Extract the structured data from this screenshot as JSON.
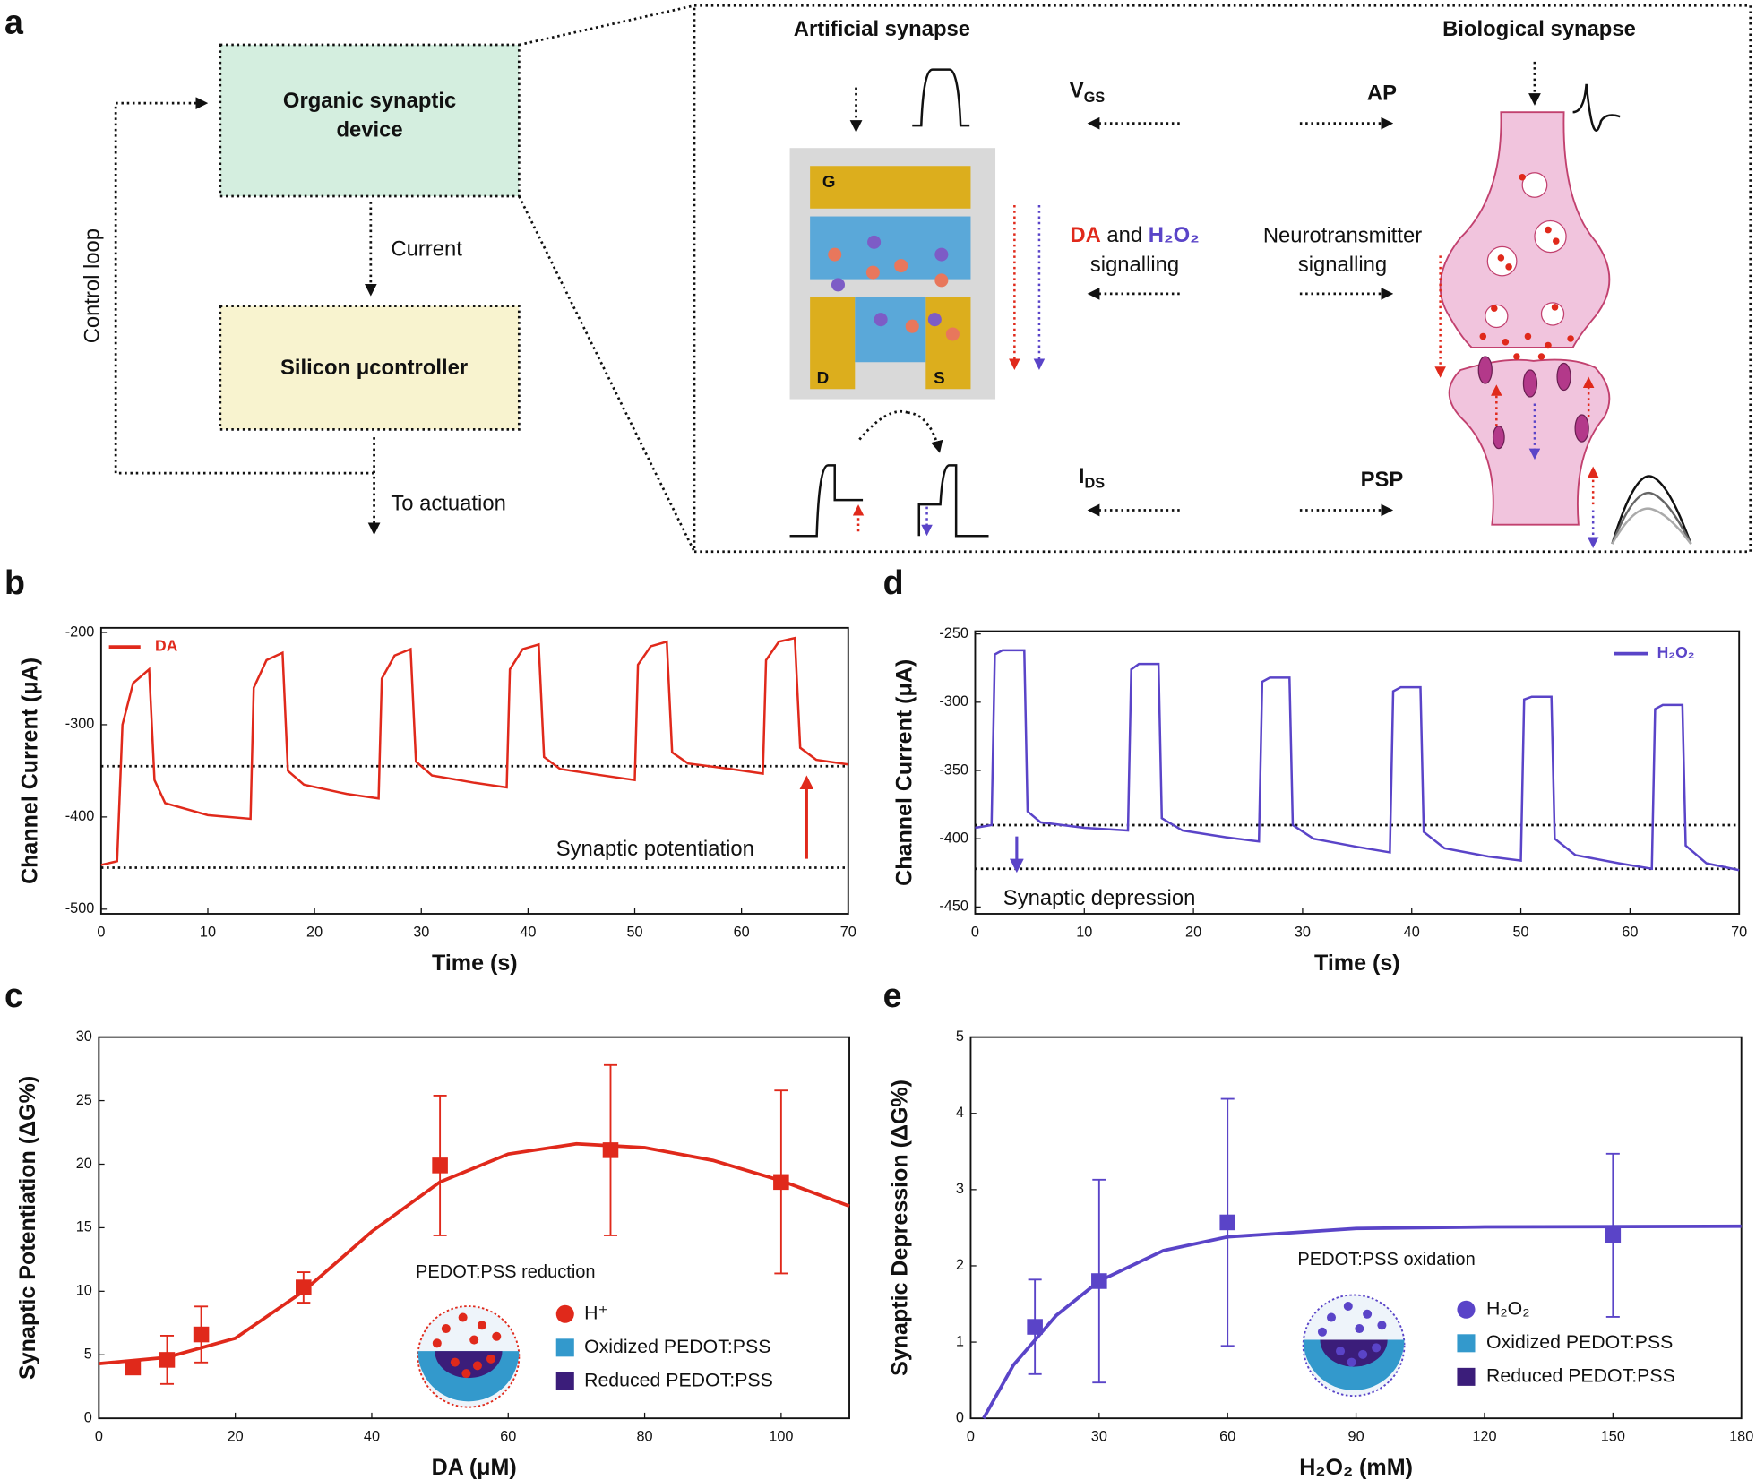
{
  "diagram": {
    "panel": "a",
    "device_box": [
      "Organic synaptic",
      "device"
    ],
    "current": "Current",
    "controller": "Silicon μcontroller",
    "actuation": "To actuation",
    "loop": "Control loop",
    "artificial": "Artificial synapse",
    "biological": "Biological synapse",
    "vgs": {
      "main": "V",
      "sub": "GS"
    },
    "ap": "AP",
    "da": "DA",
    "and": "and",
    "h2o2": "H₂O₂",
    "signalling_left": "signalling",
    "neuro": "Neurotransmitter",
    "signalling_right": "signalling",
    "ids": {
      "main": "I",
      "sub": "DS"
    },
    "psp": "PSP",
    "gate": "G",
    "drain": "D",
    "source": "S"
  },
  "chart_data": [
    {
      "type": "line",
      "panel": "b",
      "xlabel": "Time (s)",
      "ylabel": "Channel Current (μA)",
      "xlim": [
        0,
        70
      ],
      "xticks": [
        0,
        10,
        20,
        30,
        40,
        50,
        60,
        70
      ],
      "ylim": [
        -505,
        -195
      ],
      "yticks": [
        -200,
        -300,
        -400,
        -500
      ],
      "legend": "upper left",
      "reference_lines": [
        -345,
        -455
      ],
      "annotation": "Synaptic potentiation",
      "series": [
        {
          "name": "DA",
          "color": "#e0291b",
          "x": [
            0,
            1.5,
            2,
            3,
            4.5,
            5,
            6,
            10,
            14,
            14.3,
            15.5,
            17,
            17.5,
            19,
            23,
            26,
            26.3,
            27.5,
            29,
            29.5,
            31,
            35,
            38,
            38.3,
            39.5,
            41,
            41.5,
            43,
            47,
            50,
            50.3,
            51.5,
            53,
            53.5,
            55,
            59,
            62,
            62.3,
            63.5,
            65,
            65.5,
            67,
            70
          ],
          "values": [
            -452,
            -448,
            -300,
            -255,
            -240,
            -360,
            -385,
            -398,
            -402,
            -260,
            -230,
            -222,
            -350,
            -365,
            -375,
            -380,
            -250,
            -225,
            -218,
            -340,
            -355,
            -363,
            -368,
            -240,
            -218,
            -213,
            -335,
            -348,
            -355,
            -360,
            -235,
            -215,
            -210,
            -330,
            -342,
            -348,
            -353,
            -230,
            -210,
            -206,
            -325,
            -338,
            -343
          ]
        }
      ]
    },
    {
      "type": "line",
      "panel": "d",
      "xlabel": "Time (s)",
      "ylabel": "Channel Current (μA)",
      "xlim": [
        0,
        70
      ],
      "xticks": [
        0,
        10,
        20,
        30,
        40,
        50,
        60,
        70
      ],
      "ylim": [
        -455,
        -248
      ],
      "yticks": [
        -250,
        -300,
        -350,
        -400,
        -450
      ],
      "legend": "upper right",
      "reference_lines": [
        -390,
        -422
      ],
      "annotation": "Synaptic depression",
      "series": [
        {
          "name": "H₂O₂",
          "color": "#5a44c8",
          "x": [
            0,
            1.5,
            1.8,
            2.5,
            4.5,
            4.8,
            6,
            10,
            14,
            14.3,
            15,
            16.8,
            17.1,
            19,
            23,
            26,
            26.3,
            27,
            28.8,
            29.1,
            31,
            35,
            38,
            38.3,
            39,
            40.8,
            41.1,
            43,
            47,
            50,
            50.3,
            51,
            52.8,
            53.1,
            55,
            59,
            62,
            62.3,
            63,
            64.8,
            65.1,
            67,
            70
          ],
          "values": [
            -392,
            -390,
            -265,
            -262,
            -262,
            -380,
            -388,
            -392,
            -394,
            -276,
            -272,
            -272,
            -385,
            -394,
            -399,
            -402,
            -285,
            -282,
            -282,
            -390,
            -400,
            -406,
            -410,
            -292,
            -289,
            -289,
            -395,
            -407,
            -413,
            -416,
            -298,
            -296,
            -296,
            -400,
            -412,
            -418,
            -422,
            -305,
            -302,
            -302,
            -405,
            -418,
            -423
          ]
        }
      ]
    },
    {
      "type": "scatter",
      "panel": "c",
      "xlabel": "DA (μM)",
      "ylabel": "Synaptic Potentiation (ΔG%)",
      "xlim": [
        0,
        110
      ],
      "xticks": [
        0,
        20,
        40,
        60,
        80,
        100
      ],
      "ylim": [
        0,
        30
      ],
      "yticks": [
        0,
        5,
        10,
        15,
        20,
        25,
        30
      ],
      "series": [
        {
          "color": "#e0291b",
          "x": [
            5,
            10,
            15,
            30,
            50,
            75,
            100
          ],
          "values": [
            4,
            4.6,
            6.6,
            10.3,
            19.9,
            21.1,
            18.6
          ],
          "errors": [
            0.3,
            1.9,
            2.2,
            1.2,
            5.5,
            6.7,
            7.2
          ]
        }
      ],
      "fit": {
        "x": [
          0,
          10,
          20,
          30,
          40,
          50,
          60,
          70,
          80,
          90,
          100,
          110
        ],
        "values": [
          4.3,
          4.8,
          6.3,
          10,
          14.7,
          18.6,
          20.8,
          21.6,
          21.3,
          20.3,
          18.7,
          16.7
        ]
      },
      "inset": {
        "title": "PEDOT:PSS reduction",
        "legend": [
          "H⁺",
          "Oxidized PEDOT:PSS",
          "Reduced PEDOT:PSS"
        ]
      }
    },
    {
      "type": "scatter",
      "panel": "e",
      "xlabel": "H₂O₂ (mM)",
      "ylabel": "Synaptic Depression (ΔG%)",
      "xlim": [
        0,
        180
      ],
      "xticks": [
        0,
        30,
        60,
        90,
        120,
        150,
        180
      ],
      "ylim": [
        0,
        5
      ],
      "yticks": [
        0,
        1,
        2,
        3,
        4,
        5
      ],
      "series": [
        {
          "color": "#5a44c8",
          "x": [
            15,
            30,
            60,
            150
          ],
          "values": [
            1.2,
            1.8,
            2.57,
            2.4
          ],
          "errors": [
            0.62,
            1.33,
            1.62,
            1.07
          ]
        }
      ],
      "fit": {
        "x": [
          3,
          10,
          20,
          30,
          45,
          60,
          90,
          120,
          180
        ],
        "values": [
          0,
          0.7,
          1.35,
          1.8,
          2.2,
          2.38,
          2.49,
          2.51,
          2.52
        ]
      },
      "inset": {
        "title": "PEDOT:PSS oxidation",
        "legend": [
          "H₂O₂",
          "Oxidized PEDOT:PSS",
          "Reduced PEDOT:PSS"
        ]
      }
    }
  ]
}
